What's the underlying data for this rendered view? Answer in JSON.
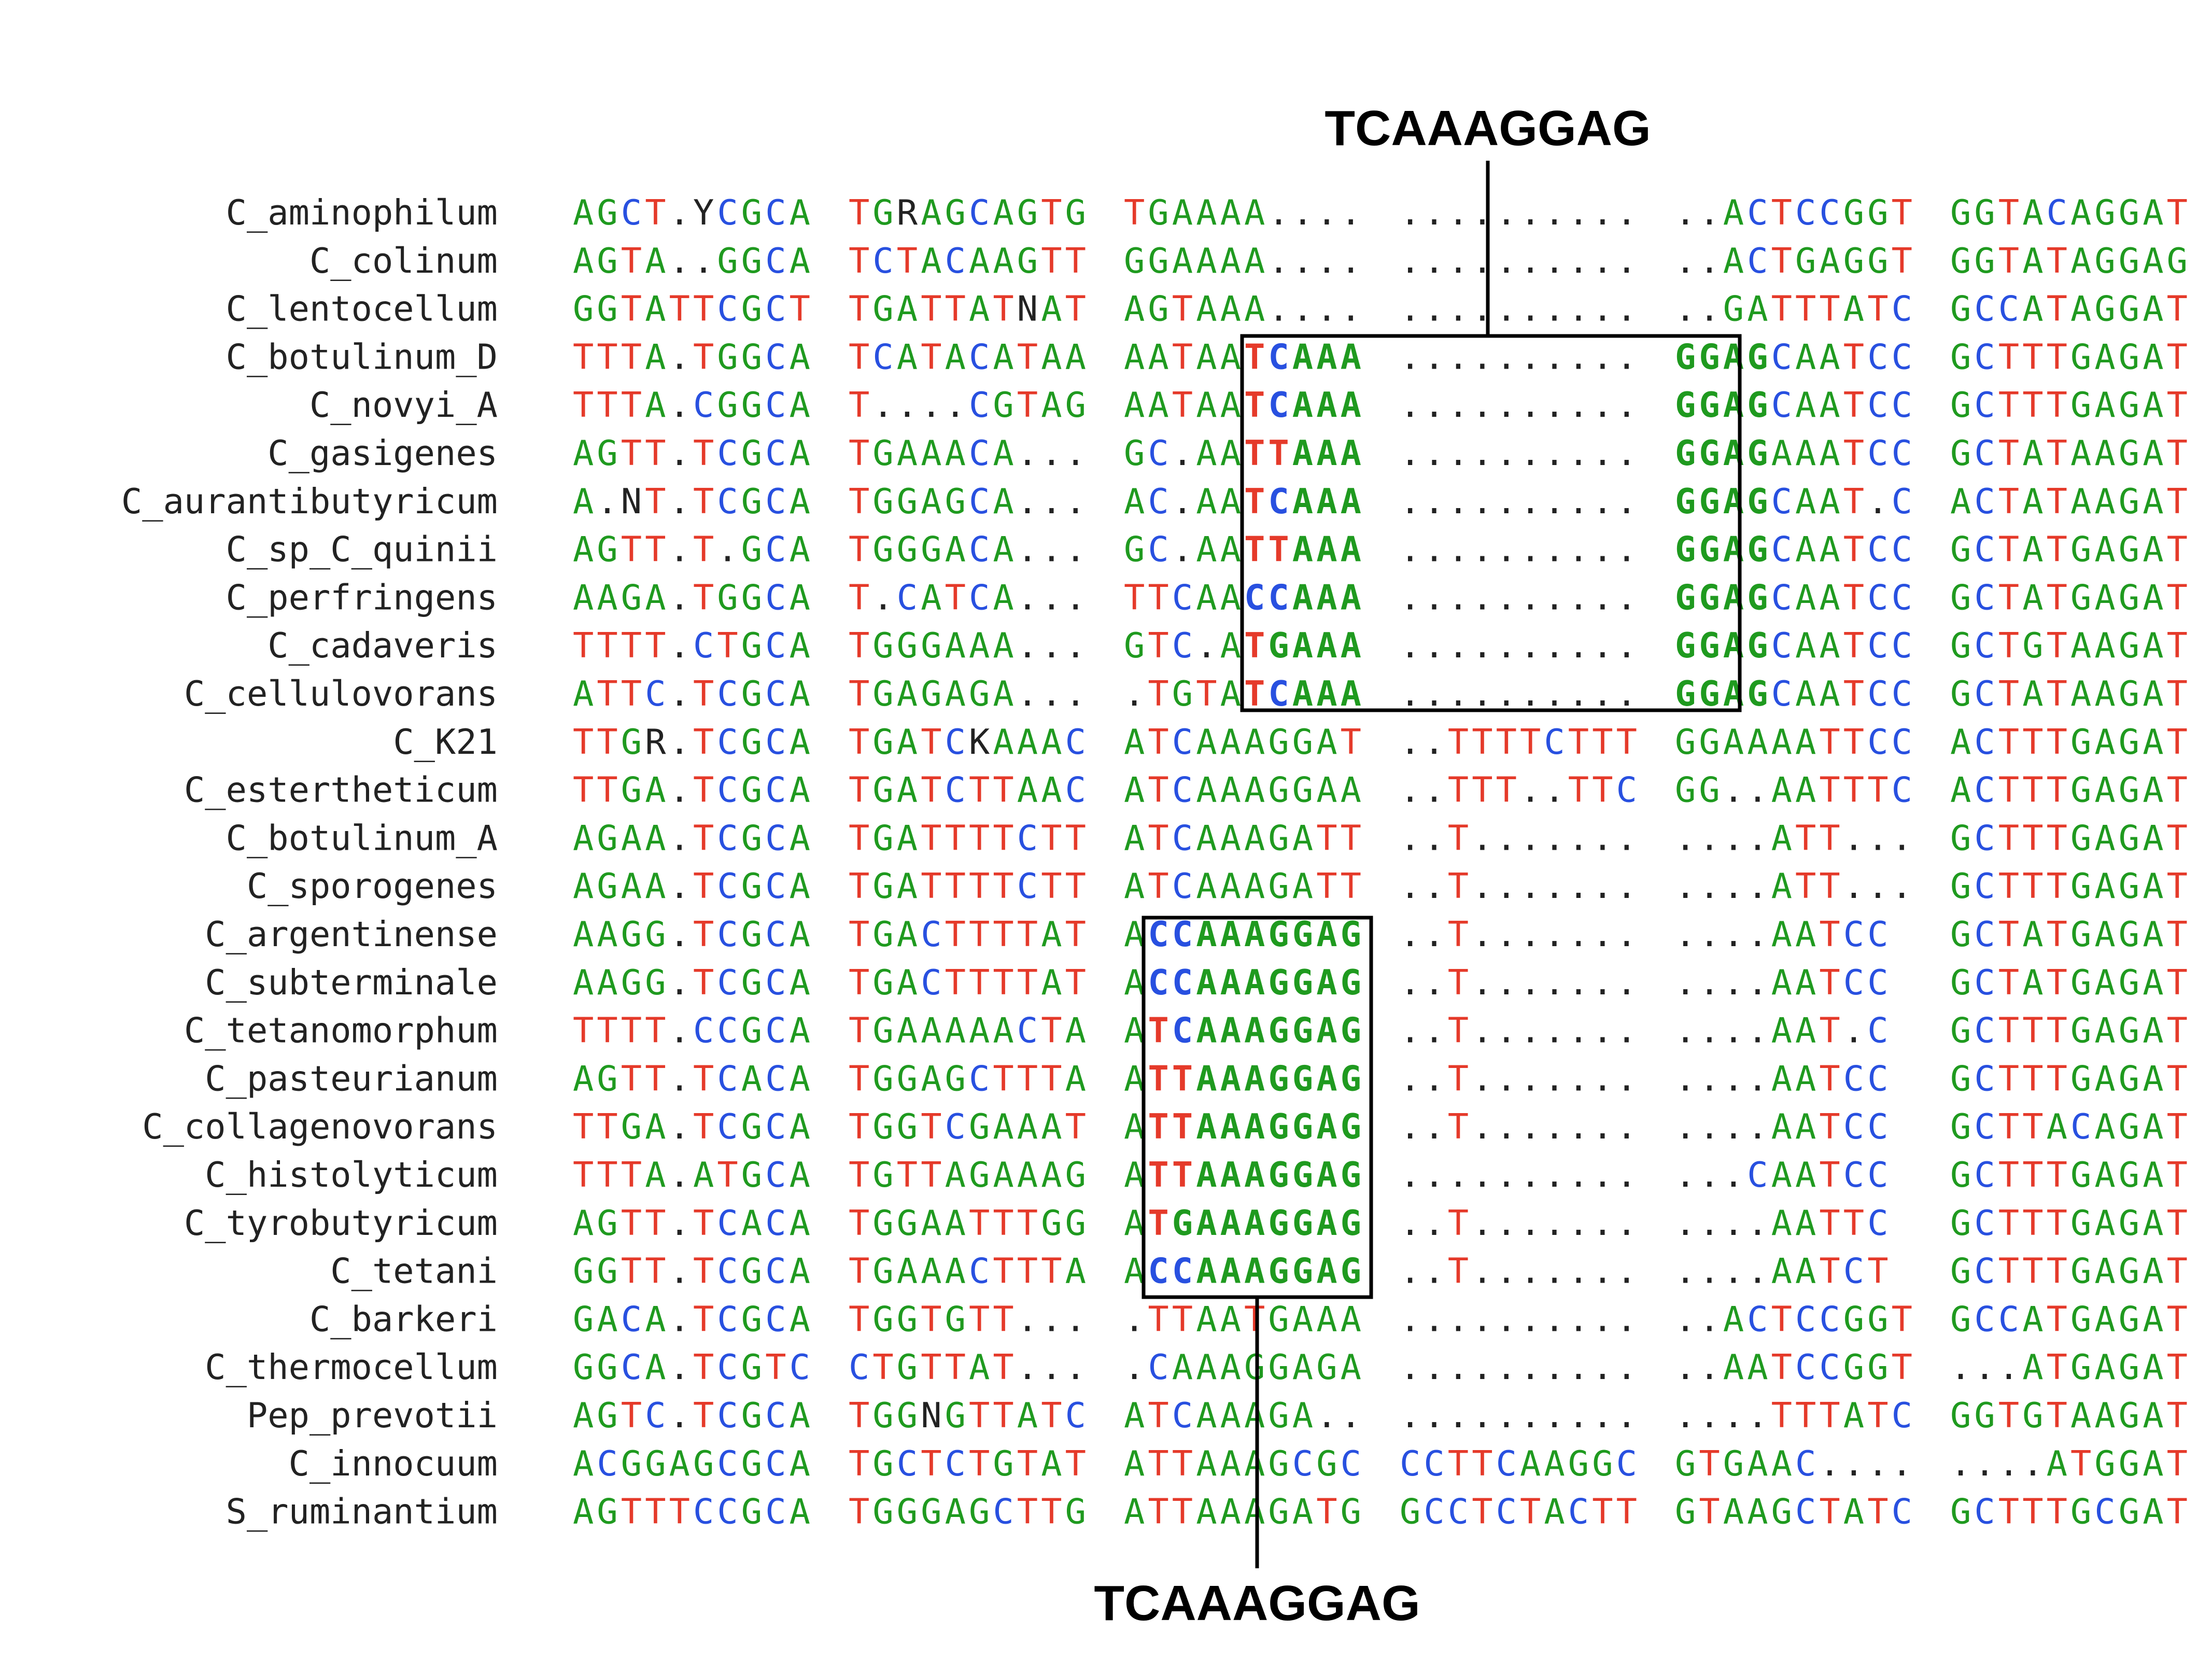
{
  "colors": {
    "A": "#1f9a1f",
    "G": "#1f9a1f",
    "C": "#2850e0",
    "T": "#e53a2a",
    "other": "#222222"
  },
  "top_label": "TCAAAGGAG",
  "bottom_label": "TCAAAGGAG",
  "rows": [
    {
      "name": "C_aminophilum",
      "blocks": [
        "AGCT.YCGCA",
        "TGRAGCAGTG",
        "TGAAAA....",
        "..........",
        "..ACTCCGGT",
        "GGTACAGGAT"
      ]
    },
    {
      "name": "C_colinum",
      "blocks": [
        "AGTA..GGCA",
        "TCTACAAGTT",
        "GGAAAA....",
        "..........",
        "..ACTGAGGT",
        "GGTATAGGAG"
      ]
    },
    {
      "name": "C_lentocellum",
      "blocks": [
        "GGTATTCGCT",
        "TGATTATNAT",
        "AGTAAA....",
        "..........",
        "..GATTTATC",
        "GCCATAGGAT"
      ]
    },
    {
      "name": "C_botulinum_D",
      "blocks": [
        "TTTA.TGGCA",
        "TCATACATAA",
        "AATAATCAAA",
        "..........",
        "GGAGCAATCC",
        "GCTTTGAGAT"
      ]
    },
    {
      "name": "C_novyi_A",
      "blocks": [
        "TTTA.CGGCA",
        "T....CGTAG",
        "AATAATCAAA",
        "..........",
        "GGAGCAATCC",
        "GCTTTGAGAT"
      ]
    },
    {
      "name": "C_gasigenes",
      "blocks": [
        "AGTT.TCGCA",
        "TGAAACA...",
        "GC.AATTAAA",
        "..........",
        "GGAGAAATCC",
        "GCTATAAGAT"
      ]
    },
    {
      "name": "C_aurantibutyricum",
      "blocks": [
        "A.NT.TCGCA",
        "TGGAGCA...",
        "AC.AATCAAA",
        "..........",
        "GGAGCAAT.C",
        "ACTATAAGAT"
      ]
    },
    {
      "name": "C_sp_C_quinii",
      "blocks": [
        "AGTT.T.GCA",
        "TGGGACA...",
        "GC.AATTAAA",
        "..........",
        "GGAGCAATCC",
        "GCTATGAGAT"
      ]
    },
    {
      "name": "C_perfringens",
      "blocks": [
        "AAGA.TGGCA",
        "T.CATCA...",
        "TTCAACCAAA",
        "..........",
        "GGAGCAATCC",
        "GCTATGAGAT"
      ]
    },
    {
      "name": "C_cadaveris",
      "blocks": [
        "TTTT.CTGCA",
        "TGGGAAA...",
        "GTC.ATGAAA",
        "..........",
        "GGAGCAATCC",
        "GCTGTAAGAT"
      ]
    },
    {
      "name": "C_cellulovorans",
      "blocks": [
        "ATTC.TCGCA",
        "TGAGAGA...",
        ".TGTATCAAA",
        "..........",
        "GGAGCAATCC",
        "GCTATAAGAT"
      ]
    },
    {
      "name": "C_K21",
      "blocks": [
        "TTGR.TCGCA",
        "TGATCKAAAC",
        "ATCAAAGGAT",
        "..TTTTCTTT",
        "GGAAAATTCC",
        "ACTTTGAGAT"
      ]
    },
    {
      "name": "C_estertheticum",
      "blocks": [
        "TTGA.TCGCA",
        "TGATCTTAAC",
        "ATCAAAGGAA",
        "..TTT..TTC",
        "GG..AATTTC",
        "ACTTTGAGAT"
      ]
    },
    {
      "name": "C_botulinum_A",
      "blocks": [
        "AGAA.TCGCA",
        "TGATTTTCTT",
        "ATCAAAGATT",
        "..T.......",
        "....ATT...",
        "GCTTTGAGAT"
      ]
    },
    {
      "name": "C_sporogenes",
      "blocks": [
        "AGAA.TCGCA",
        "TGATTTTCTT",
        "ATCAAAGATT",
        "..T.......",
        "....ATT...",
        "GCTTTGAGAT"
      ]
    },
    {
      "name": "C_argentinense",
      "blocks": [
        "AAGG.TCGCA",
        "TGACTTTTAT",
        "ACCAAAGGAG",
        "..T.......",
        "....AATCC",
        "GCTATGAGAT"
      ]
    },
    {
      "name": "C_subterminale",
      "blocks": [
        "AAGG.TCGCA",
        "TGACTTTTAT",
        "ACCAAAGGAG",
        "..T.......",
        "....AATCC",
        "GCTATGAGAT"
      ]
    },
    {
      "name": "C_tetanomorphum",
      "blocks": [
        "TTTT.CCGCA",
        "TGAAAAACTA",
        "ATCAAAGGAG",
        "..T.......",
        "....AAT.C",
        "GCTTTGAGAT"
      ]
    },
    {
      "name": "C_pasteurianum",
      "blocks": [
        "AGTT.TCACA",
        "TGGAGCTTTA",
        "ATTAAAGGAG",
        "..T.......",
        "....AATCC",
        "GCTTTGAGAT"
      ]
    },
    {
      "name": "C_collagenovorans",
      "blocks": [
        "TTGA.TCGCA",
        "TGGTCGAAAT",
        "ATTAAAGGAG",
        "..T.......",
        "....AATCC",
        "GCTTACAGAT"
      ]
    },
    {
      "name": "C_histolyticum",
      "blocks": [
        "TTTA.ATGCA",
        "TGTTAGAAAG",
        "ATTAAAGGAG",
        "..........",
        "...CAATCC",
        "GCTTTGAGAT"
      ]
    },
    {
      "name": "C_tyrobutyricum",
      "blocks": [
        "AGTT.TCACA",
        "TGGAATTTGG",
        "ATGAAAGGAG",
        "..T.......",
        "....AATTC",
        "GCTTTGAGAT"
      ]
    },
    {
      "name": "C_tetani",
      "blocks": [
        "GGTT.TCGCA",
        "TGAAACTTTA",
        "ACCAAAGGAG",
        "..T.......",
        "....AATCT",
        "GCTTTGAGAT"
      ]
    },
    {
      "name": "C_barkeri",
      "blocks": [
        "GACA.TCGCA",
        "TGGTGTT...",
        ".TTAATGAAA",
        "..........",
        "..ACTCCGGT",
        "GCCATGAGAT"
      ]
    },
    {
      "name": "C_thermocellum",
      "blocks": [
        "GGCA.TCGTC",
        "CTGTTAT...",
        ".CAAAGGAGA",
        "..........",
        "..AATCCGGT",
        "...ATGAGAT"
      ]
    },
    {
      "name": "Pep_prevotii",
      "blocks": [
        "AGTC.TCGCA",
        "TGGNGTTATC",
        "ATCAAAGA..",
        "..........",
        "....TTTATC",
        "GGTGTAAGAT"
      ]
    },
    {
      "name": "C_innocuum",
      "blocks": [
        "ACGGAGCGCA",
        "TGCTCTGTAT",
        "ATTAAAGCGC",
        "CCTTCAAGGC",
        "GTGAAC....",
        "....ATGGAT"
      ]
    },
    {
      "name": "S_ruminantium",
      "blocks": [
        "AGTTTCCGCA",
        "TGGGAGCTTG",
        "ATTAAAGATG",
        "GCCTCTACTT",
        "GTAAGCTATC",
        "GCTTTGCGAT"
      ]
    }
  ]
}
